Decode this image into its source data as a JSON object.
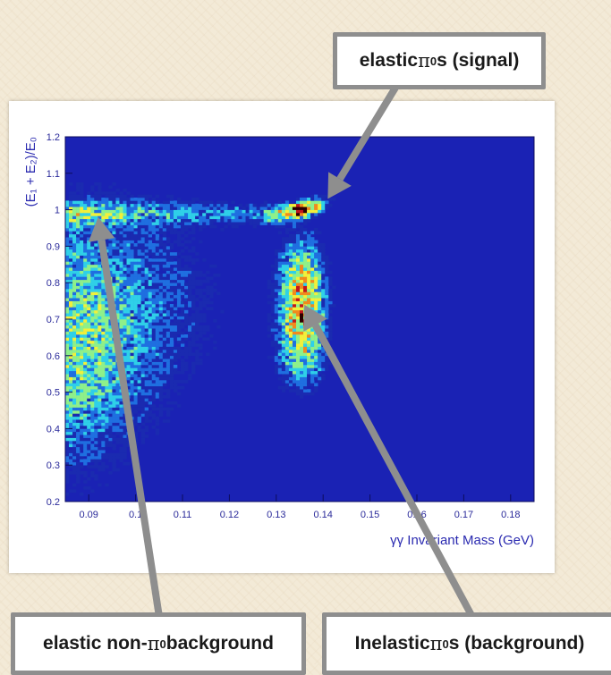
{
  "chart_data": {
    "type": "heatmap",
    "title": "",
    "xlabel": "γγ Invariant Mass (GeV)",
    "ylabel": "(E₁ + E₂)/E₀",
    "xlim": [
      0.085,
      0.185
    ],
    "ylim": [
      0.2,
      1.2
    ],
    "x_ticks": [
      "0.09",
      "0.1",
      "0.11",
      "0.12",
      "0.13",
      "0.14",
      "0.15",
      "0.16",
      "0.17",
      "0.18"
    ],
    "x_tick_values": [
      0.09,
      0.1,
      0.11,
      0.12,
      0.13,
      0.14,
      0.15,
      0.16,
      0.17,
      0.18
    ],
    "y_ticks": [
      "0.2",
      "0.3",
      "0.4",
      "0.5",
      "0.6",
      "0.7",
      "0.8",
      "0.9",
      "1",
      "1.1",
      "1.2"
    ],
    "y_tick_values": [
      0.2,
      0.3,
      0.4,
      0.5,
      0.6,
      0.7,
      0.8,
      0.9,
      1.0,
      1.1,
      1.2
    ],
    "grid": false,
    "colorscale": [
      "#1a2ab0",
      "#1f6fe0",
      "#2fd0e8",
      "#8ef08a",
      "#f2f03a",
      "#f08a1e",
      "#c0161c",
      "#2a0000"
    ],
    "background_color": "#1a22b4",
    "regions": [
      {
        "name": "elastic_signal_peak",
        "x": 0.135,
        "y": 1.0,
        "peak_density": 1.0
      },
      {
        "name": "inelastic_band",
        "x": 0.135,
        "y_range": [
          0.55,
          0.95
        ],
        "peak_density": 0.75
      },
      {
        "name": "elastic_non_pi0_band",
        "x_range": [
          0.085,
          0.13
        ],
        "y": 1.0,
        "peak_density": 0.4
      },
      {
        "name": "low_mass_continuum",
        "x_range": [
          0.085,
          0.11
        ],
        "y_range": [
          0.4,
          0.95
        ],
        "peak_density": 0.45
      }
    ],
    "annotations": [
      {
        "text": "elastic π⁰s (signal)",
        "points_to": {
          "x": 0.141,
          "y": 1.03
        }
      },
      {
        "text": "elastic non-π⁰ background",
        "points_to": {
          "x": 0.092,
          "y": 0.98
        }
      },
      {
        "text": "Inelastic π⁰s (background)",
        "points_to": {
          "x": 0.136,
          "y": 0.74
        }
      }
    ]
  },
  "callouts": {
    "signal": {
      "pre": "elastic ",
      "pi": "π",
      "sup": "0",
      "post": "s (signal)"
    },
    "non_pi": {
      "pre": "elastic non-",
      "pi": "π",
      "sup": "0",
      "post": " background"
    },
    "inelastic": {
      "pre": "Inelastic ",
      "pi": "π",
      "sup": "0",
      "post": "s (background)"
    }
  }
}
